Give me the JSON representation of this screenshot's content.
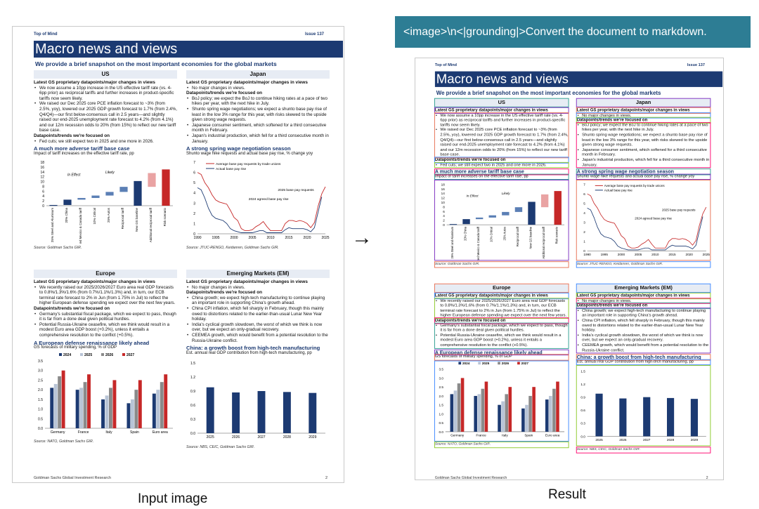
{
  "prompt_text": "<image>\\n<|grounding|>Convert the document to markdown.",
  "captions": {
    "input": "Input image",
    "result": "Result"
  },
  "arrow": "→",
  "doc": {
    "top_left": "Top of Mind",
    "top_right": "Issue 137",
    "title": "Macro news and views",
    "subtitle": "We provide a brief snapshot on the most important economies for the global markets",
    "footer_left": "Goldman Sachs Global Investment Research",
    "footer_right": "2",
    "us": {
      "name": "US",
      "h1": "Latest GS proprietary datapoints/major changes in views",
      "b1": [
        "We now assume a 10pp increase in the US effective tariff rate (vs. 4-6pp prior) as reciprocal tariffs and further increases in product-specific tariffs now seem likely.",
        "We raised our Dec 2025 core PCE inflation forecast to ~3% (from 2.5%, yoy), lowered our 2025 GDP growth forecast to 1.7% (from 2.4%, Q4/Q4)—our first below-consensus call in 2.5 years—and slightly raised our end-2025 unemployment rate forecast to 4.2% (from 4.1%) and our 12m recession odds to 20% (from 15%) to reflect our new tariff base case."
      ],
      "h2": "Datapoints/trends we're focused on",
      "b2": [
        "Fed cuts; we still expect two in 2025 and one more in 2026."
      ],
      "chart_title": "A much more adverse tariff base case",
      "chart_sub": "Impact of tariff increases on the effective tariff rate, pp",
      "source": "Source: Goldman Sachs GIR."
    },
    "japan": {
      "name": "Japan",
      "h1": "Latest GS proprietary datapoints/major changes in views",
      "b1": [
        "No major changes in views."
      ],
      "h2": "Datapoints/trends we're focused on",
      "b2": [
        "BoJ policy; we expect the BoJ to continue hiking rates at a pace of two hikes per year, with the next hike in July.",
        "Shunto spring wage negotiations; we expect a shunto base pay rise of least in the low 3% range for this year, with risks skewed to the upside given strong wage requests.",
        "Japanese consumer sentiment, which softened for a third consecutive month in February.",
        "Japan's industrial production, which fell for a third consecutive month in January."
      ],
      "chart_title": "A strong spring wage negotiation season",
      "chart_sub": "Shunto wage hike requests and actual base pay rise, % change yoy",
      "source": "Source: JTUC-RENGO, Keidanren, Goldman Sachs GIR."
    },
    "europe": {
      "name": "Europe",
      "h1": "Latest GS proprietary datapoints/major changes in views",
      "b1": [
        "We recently raised our 2025/2026/2027 Euro area real GDP forecasts to 0.8%/1.3%/1.6% (from 0.7%/1.1%/1.3%) and, in turn, our ECB terminal rate forecast to 2% in Jun (from 1.75% in Jul) to reflect the higher European defense spending we expect over the next few years."
      ],
      "h2": "Datapoints/trends we're focused on",
      "b2": [
        "Germany's substantial fiscal package, which we expect to pass, though it is far from a done deal given political hurdles.",
        "Potential Russia-Ukraine ceasefire, which we think would result in a modest Euro area GDP boost (+0.2%), unless it entails a comprehensive resolution to the conflict (+0.5%)."
      ],
      "chart_title": "A European defense renaissance likely ahead",
      "chart_sub": "GS forecasts of military spending, % of GDP",
      "source": "Source: NATO, Goldman Sachs GIR."
    },
    "em": {
      "name": "Emerging Markets (EM)",
      "h1": "Latest GS proprietary datapoints/major changes in views",
      "b1": [
        "No major changes in views."
      ],
      "h2": "Datapoints/trends we're focused on",
      "b2": [
        "China growth; we expect high-tech manufacturing to continue playing an important role in supporting China's growth ahead.",
        "China CPI inflation, which fell sharply in February, though this mainly owed to distortions related to the earlier-than-usual Lunar New Year holiday.",
        "India's cyclical growth slowdown, the worst of which we think is now over, but we expect an only-gradual recovery.",
        "CEEMEA growth, which would benefit from a potential resolution to the Russia-Ukraine conflict."
      ],
      "chart_title": "China: a growth boost from high-tech manufacturing",
      "chart_sub": "Est. annual real GDP contribution from high-tech manufacturing, pp",
      "source": "Source: NBS, CEIC, Goldman Sachs GIR."
    }
  },
  "colors": {
    "navy": "#1c3a72",
    "red": "#c62828",
    "teal": "#2d7d94"
  },
  "chart_data": [
    {
      "type": "bar",
      "title": "A much more adverse tariff base case",
      "ylim": [
        0,
        18
      ],
      "yticks": [
        0,
        2,
        4,
        6,
        8,
        10,
        12,
        14,
        16,
        18
      ],
      "annotations": [
        "In Effect",
        "Likely"
      ],
      "categories": [
        "25% Steel and Aluminum",
        "20% China",
        "Limited Mexico & Canada tariff",
        "10% Critical",
        "25% Autos",
        "Reciprocal tariff",
        "New GS baseline",
        "Additional reciprocal tariff",
        "Risk scenario"
      ],
      "values": [
        0.3,
        2.5,
        3.2,
        4.2,
        5.7,
        7.8,
        10.2,
        13.5,
        15.0
      ]
    },
    {
      "type": "line",
      "title": "A strong spring wage negotiation season",
      "xlim": [
        1990,
        2025
      ],
      "ylim": [
        0,
        7
      ],
      "xticks": [
        1990,
        1995,
        2000,
        2005,
        2010,
        2015,
        2020,
        2025
      ],
      "yticks": [
        0,
        1,
        2,
        3,
        4,
        5,
        6,
        7
      ],
      "annotations": [
        "2025 base pay requests",
        "2024 agreed base pay rise"
      ],
      "series": [
        {
          "name": "Average base pay requests by trade unions",
          "color": "#c62828",
          "x": [
            1990,
            1991,
            1992,
            1993,
            1994,
            1995,
            1996,
            1997,
            1998,
            1999,
            2000,
            2001,
            2002,
            2003,
            2004,
            2005,
            2006,
            2007,
            2008,
            2009,
            2010,
            2011,
            2012,
            2013,
            2014,
            2015,
            2016,
            2017,
            2018,
            2019,
            2020,
            2021,
            2022,
            2023,
            2024,
            2025
          ],
          "y": [
            6.0,
            5.8,
            5.0,
            4.5,
            3.8,
            3.3,
            3.1,
            3.0,
            2.9,
            2.3,
            1.6,
            1.3,
            0.5,
            0.3,
            0.3,
            0.4,
            0.7,
            0.9,
            1.2,
            0.7,
            0.3,
            0.3,
            0.3,
            0.3,
            1.0,
            1.3,
            1.3,
            1.2,
            1.3,
            1.2,
            1.0,
            0.6,
            1.1,
            2.7,
            3.9,
            4.6
          ]
        },
        {
          "name": "Actual base pay rise",
          "color": "#1c3a72",
          "x": [
            1990,
            1991,
            1992,
            1993,
            1994,
            1995,
            1996,
            1997,
            1998,
            1999,
            2000,
            2001,
            2002,
            2003,
            2004,
            2005,
            2006,
            2007,
            2008,
            2009,
            2010,
            2011,
            2012,
            2013,
            2014,
            2015,
            2016,
            2017,
            2018,
            2019,
            2020,
            2021,
            2022,
            2023,
            2024
          ],
          "y": [
            4.5,
            4.3,
            3.5,
            2.5,
            1.8,
            1.5,
            1.4,
            1.3,
            1.0,
            0.5,
            0.3,
            0.2,
            0.1,
            0.1,
            0.1,
            0.1,
            0.2,
            0.3,
            0.3,
            0.1,
            0.1,
            0.1,
            0.1,
            0.1,
            0.4,
            0.6,
            0.5,
            0.5,
            0.5,
            0.5,
            0.4,
            0.2,
            0.6,
            2.1,
            3.6
          ]
        }
      ]
    },
    {
      "type": "bar",
      "title": "A European defense renaissance likely ahead",
      "ylim": [
        0,
        3.5
      ],
      "yticks": [
        0,
        0.5,
        1.0,
        1.5,
        2.0,
        2.5,
        3.0,
        3.5
      ],
      "categories": [
        "Germany",
        "France",
        "Italy",
        "Spain",
        "Euro area"
      ],
      "series": [
        {
          "name": "2024",
          "color": "#1c3a72",
          "values": [
            2.1,
            2.0,
            1.5,
            1.3,
            1.8
          ]
        },
        {
          "name": "2025",
          "color": "#b8c4d6",
          "values": [
            2.3,
            2.1,
            1.7,
            1.5,
            2.0
          ]
        },
        {
          "name": "2026",
          "color": "#8a8a8a",
          "values": [
            2.7,
            2.4,
            2.1,
            2.0,
            2.4
          ]
        },
        {
          "name": "2027",
          "color": "#c62828",
          "values": [
            3.0,
            2.8,
            2.5,
            2.5,
            2.8
          ]
        }
      ]
    },
    {
      "type": "bar",
      "title": "China: a growth boost from high-tech manufacturing",
      "ylim": [
        0,
        1.5
      ],
      "yticks": [
        0,
        0.3,
        0.6,
        0.9,
        1.2,
        1.5
      ],
      "categories": [
        "2025",
        "2026",
        "2027",
        "2028",
        "2029"
      ],
      "values": [
        0.98,
        0.87,
        0.9,
        0.88,
        0.86
      ]
    }
  ]
}
